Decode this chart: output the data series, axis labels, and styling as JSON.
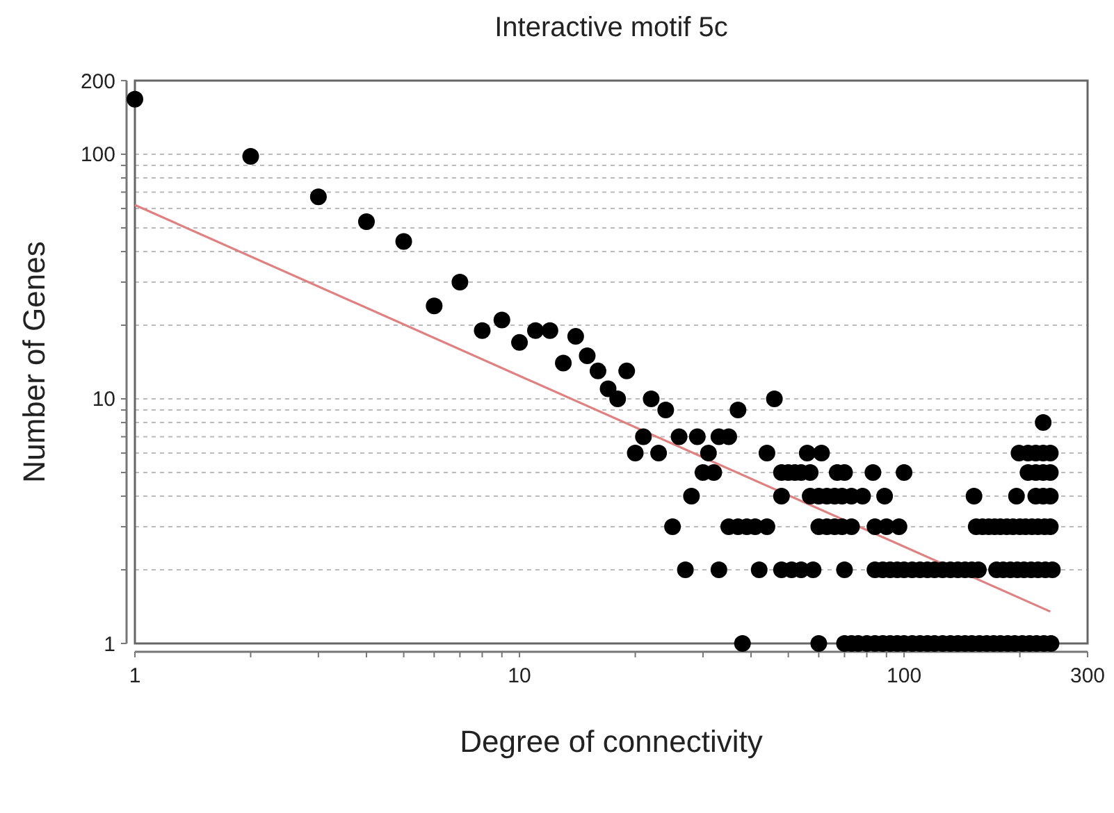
{
  "chart_data": {
    "type": "scatter",
    "title": "Interactive motif 5c",
    "xlabel": "Degree of connectivity",
    "ylabel": "Number of Genes",
    "log": "xy",
    "grid": "y",
    "xlim": [
      1,
      300
    ],
    "ylim": [
      1,
      200
    ],
    "xticks": [
      1,
      {
        "value": 2,
        "label": null
      },
      {
        "value": 3,
        "label": null
      },
      {
        "value": 4,
        "label": null
      },
      {
        "value": 5,
        "label": null
      },
      {
        "value": 6,
        "label": null
      },
      {
        "value": 7,
        "label": null
      },
      {
        "value": 8,
        "label": null
      },
      {
        "value": 9,
        "label": null
      },
      10,
      {
        "value": 20,
        "label": null
      },
      {
        "value": 30,
        "label": null
      },
      {
        "value": 40,
        "label": null
      },
      {
        "value": 50,
        "label": null
      },
      {
        "value": 60,
        "label": null
      },
      {
        "value": 70,
        "label": null
      },
      {
        "value": 80,
        "label": null
      },
      {
        "value": 90,
        "label": null
      },
      100,
      {
        "value": 200,
        "label": null
      },
      300
    ],
    "yticks": [
      1,
      {
        "value": 2,
        "label": null
      },
      {
        "value": 3,
        "label": null
      },
      {
        "value": 4,
        "label": null
      },
      {
        "value": 5,
        "label": null
      },
      {
        "value": 6,
        "label": null
      },
      {
        "value": 7,
        "label": null
      },
      {
        "value": 8,
        "label": null
      },
      {
        "value": 9,
        "label": null
      },
      10,
      {
        "value": 20,
        "label": null
      },
      {
        "value": 30,
        "label": null
      },
      {
        "value": 40,
        "label": null
      },
      {
        "value": 50,
        "label": null
      },
      {
        "value": 60,
        "label": null
      },
      {
        "value": 70,
        "label": null
      },
      {
        "value": 80,
        "label": null
      },
      {
        "value": 90,
        "label": null
      },
      100,
      200
    ],
    "series": [
      {
        "marker": "circle",
        "color": "#000000",
        "x": [
          1,
          2,
          3,
          4,
          5,
          6,
          7,
          8,
          9,
          10,
          11,
          12,
          13,
          14,
          15,
          16,
          17,
          18,
          19,
          20,
          21,
          22,
          23,
          24,
          25,
          26,
          27,
          28,
          29,
          30,
          31,
          32,
          33,
          33,
          35,
          35,
          37,
          37,
          38,
          39,
          41,
          42,
          44,
          44,
          46,
          48,
          48,
          48,
          50,
          51,
          52,
          54,
          54,
          56,
          57,
          57,
          58,
          60,
          60,
          60,
          61,
          63,
          63,
          66,
          66,
          67,
          69,
          69,
          70,
          70,
          70,
          73,
          73,
          73,
          76,
          78,
          80,
          83,
          84,
          84,
          84,
          88,
          88,
          89,
          90,
          92,
          92,
          96,
          96,
          97,
          100,
          100,
          100,
          105,
          105,
          110,
          110,
          115,
          115,
          120,
          120,
          126,
          126,
          132,
          132,
          138,
          138,
          144,
          144,
          150,
          150,
          152,
          154,
          156,
          157,
          160,
          164,
          166,
          171,
          172,
          174,
          178,
          178,
          181,
          185,
          186,
          189,
          192,
          194,
          196,
          197,
          199,
          200,
          203,
          205,
          207,
          210,
          210,
          212,
          214,
          215,
          220,
          220,
          220,
          221,
          223,
          223,
          230,
          230,
          230,
          230,
          231,
          232,
          233,
          240,
          240,
          240,
          240,
          241,
          243
        ],
        "values": [
          168,
          98,
          67,
          53,
          44,
          24,
          30,
          19,
          21,
          17,
          19,
          19,
          14,
          18,
          15,
          13,
          11,
          10,
          13,
          6,
          7,
          10,
          6,
          9,
          3,
          7,
          2,
          4,
          7,
          5,
          6,
          5,
          7,
          2,
          7,
          3,
          3,
          9,
          1,
          3,
          3,
          2,
          3,
          6,
          10,
          5,
          4,
          2,
          5,
          2,
          5,
          5,
          2,
          6,
          5,
          4,
          2,
          4,
          3,
          1,
          6,
          4,
          3,
          4,
          3,
          5,
          4,
          3,
          5,
          2,
          1,
          4,
          3,
          1,
          1,
          4,
          1,
          5,
          3,
          2,
          1,
          2,
          1,
          4,
          3,
          2,
          1,
          2,
          1,
          3,
          5,
          2,
          1,
          2,
          1,
          2,
          1,
          2,
          1,
          2,
          1,
          2,
          1,
          2,
          1,
          2,
          1,
          2,
          1,
          2,
          1,
          4,
          3,
          2,
          1,
          3,
          1,
          3,
          1,
          3,
          2,
          3,
          1,
          2,
          3,
          1,
          2,
          3,
          1,
          4,
          2,
          6,
          3,
          1,
          2,
          3,
          6,
          5,
          1,
          2,
          3,
          6,
          5,
          4,
          1,
          3,
          2,
          8,
          6,
          5,
          4,
          1,
          3,
          2,
          6,
          5,
          4,
          3,
          1,
          2
        ]
      },
      {
        "type": "line",
        "color": "#e08080",
        "x": [
          1,
          240
        ],
        "values": [
          62,
          1.35
        ]
      }
    ]
  }
}
